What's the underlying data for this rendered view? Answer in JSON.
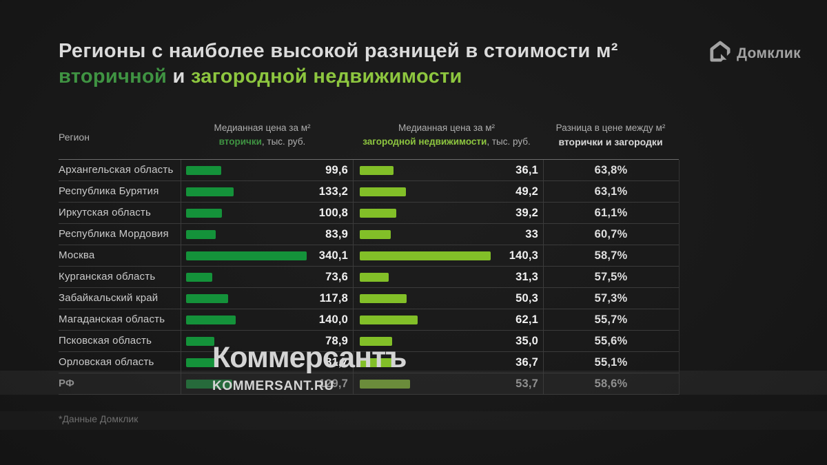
{
  "title": {
    "line1": "Регионы с наиболее высокой разницей в стоимости м²",
    "line2_secondary": "вторичной",
    "line2_and": " и ",
    "line2_suburban": "загородной недвижимости"
  },
  "logo": {
    "text": "Домклик"
  },
  "table": {
    "region_header": "Регион",
    "col2_header": {
      "line1": "Медианная цена за м²",
      "accent": "вторички",
      "rest": ", тыс. руб."
    },
    "col3_header": {
      "line1": "Медианная цена за м²",
      "accent": "загородной недвижимости",
      "rest": ", тыс. руб."
    },
    "col4_header": {
      "line1": "Разница в цене между м²",
      "line2": "вторички и загородки"
    },
    "rows": [
      {
        "region": "Архангельская область",
        "secondary_label": "99,6",
        "secondary": 99.6,
        "suburban_label": "36,1",
        "suburban": 36.1,
        "diff_label": "63,8%",
        "dim": false
      },
      {
        "region": "Республика Бурятия",
        "secondary_label": "133,2",
        "secondary": 133.2,
        "suburban_label": "49,2",
        "suburban": 49.2,
        "diff_label": "63,1%",
        "dim": false
      },
      {
        "region": "Иркутская область",
        "secondary_label": "100,8",
        "secondary": 100.8,
        "suburban_label": "39,2",
        "suburban": 39.2,
        "diff_label": "61,1%",
        "dim": false
      },
      {
        "region": "Республика Мордовия",
        "secondary_label": "83,9",
        "secondary": 83.9,
        "suburban_label": "33",
        "suburban": 33,
        "diff_label": "60,7%",
        "dim": false
      },
      {
        "region": "Москва",
        "secondary_label": "340,1",
        "secondary": 340.1,
        "suburban_label": "140,3",
        "suburban": 140.3,
        "diff_label": "58,7%",
        "dim": false
      },
      {
        "region": "Курганская область",
        "secondary_label": "73,6",
        "secondary": 73.6,
        "suburban_label": "31,3",
        "suburban": 31.3,
        "diff_label": "57,5%",
        "dim": false
      },
      {
        "region": "Забайкальский край",
        "secondary_label": "117,8",
        "secondary": 117.8,
        "suburban_label": "50,3",
        "suburban": 50.3,
        "diff_label": "57,3%",
        "dim": false
      },
      {
        "region": "Магаданская область",
        "secondary_label": "140,0",
        "secondary": 140.0,
        "suburban_label": "62,1",
        "suburban": 62.1,
        "diff_label": "55,7%",
        "dim": false
      },
      {
        "region": "Псковская область",
        "secondary_label": "78,9",
        "secondary": 78.9,
        "suburban_label": "35,0",
        "suburban": 35.0,
        "diff_label": "55,6%",
        "dim": false
      },
      {
        "region": "Орловская область",
        "secondary_label": "81,7",
        "secondary": 81.7,
        "suburban_label": "36,7",
        "suburban": 36.7,
        "diff_label": "55,1%",
        "dim": false
      },
      {
        "region": "РФ",
        "secondary_label": "129,7",
        "secondary": 129.7,
        "suburban_label": "53,7",
        "suburban": 53.7,
        "diff_label": "58,6%",
        "dim": true
      }
    ]
  },
  "watermark": {
    "line1": "Коммерсантъ",
    "line2": "KOMMERSANT.RU"
  },
  "footnote": "*Данные Домклик",
  "colors": {
    "background": "#191919",
    "title_text": "#dbdbdb",
    "secondary_green": "#14923a",
    "suburban_green": "#82bf28",
    "accent_dark_green": "#3f9342",
    "accent_light_green": "#8dc63f",
    "grid_line": "#3b3b3b",
    "dim_text": "#8f8f8f"
  },
  "chart_data": {
    "type": "bar",
    "orientation": "horizontal",
    "title": "Регионы с наиболее высокой разницей в стоимости м² вторичной и загородной недвижимости",
    "categories": [
      "Архангельская область",
      "Республика Бурятия",
      "Иркутская область",
      "Республика Мордовия",
      "Москва",
      "Курганская область",
      "Забайкальский край",
      "Магаданская область",
      "Псковская область",
      "Орловская область",
      "РФ"
    ],
    "series": [
      {
        "name": "Медианная цена за м² вторички, тыс. руб.",
        "values": [
          99.6,
          133.2,
          100.8,
          83.9,
          340.1,
          73.6,
          117.8,
          140.0,
          78.9,
          81.7,
          129.7
        ]
      },
      {
        "name": "Медианная цена за м² загородной недвижимости, тыс. руб.",
        "values": [
          36.1,
          49.2,
          39.2,
          33,
          140.3,
          31.3,
          50.3,
          62.1,
          35.0,
          36.7,
          53.7
        ]
      },
      {
        "name": "Разница в цене между м² вторички и загородки, %",
        "values": [
          63.8,
          63.1,
          61.1,
          60.7,
          58.7,
          57.5,
          57.3,
          55.7,
          55.6,
          55.1,
          58.6
        ]
      }
    ],
    "legend_position": "column headers",
    "grid": false,
    "source": "*Данные Домклик"
  }
}
